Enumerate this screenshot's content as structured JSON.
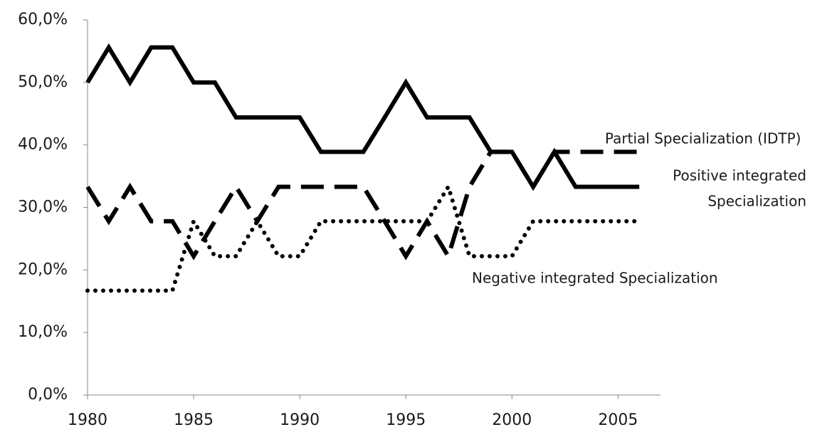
{
  "chart_data": {
    "type": "line",
    "x": [
      1980,
      1981,
      1982,
      1983,
      1984,
      1985,
      1986,
      1987,
      1988,
      1989,
      1990,
      1991,
      1992,
      1993,
      1994,
      1995,
      1996,
      1997,
      1998,
      1999,
      2000,
      2001,
      2002,
      2003,
      2004,
      2005,
      2006
    ],
    "series": [
      {
        "name": "Positive integrated Specialization",
        "color": "#000000",
        "style": "solid",
        "values": [
          50,
          55.6,
          50,
          55.6,
          55.6,
          50,
          50,
          44.4,
          44.4,
          44.4,
          44.4,
          38.9,
          38.9,
          38.9,
          44.4,
          50,
          44.4,
          44.4,
          44.4,
          38.9,
          38.9,
          33.3,
          38.9,
          33.3,
          33.3,
          33.3,
          33.3
        ]
      },
      {
        "name": "Partial Specialization (IDTP)",
        "color": "#000000",
        "style": "dashed",
        "values": [
          33.3,
          27.8,
          33.3,
          27.8,
          27.8,
          22.2,
          27.8,
          33.3,
          27.8,
          33.3,
          33.3,
          33.3,
          33.3,
          33.3,
          27.8,
          22.2,
          27.8,
          22.2,
          33.3,
          38.9,
          38.9,
          33.3,
          38.9,
          38.9,
          38.9,
          38.9,
          38.9
        ]
      },
      {
        "name": "Negative integrated Specialization",
        "color": "#000000",
        "style": "dotted",
        "values": [
          16.7,
          16.7,
          16.7,
          16.7,
          16.7,
          27.8,
          22.2,
          22.2,
          27.8,
          22.2,
          22.2,
          27.8,
          27.8,
          27.8,
          27.8,
          27.8,
          27.8,
          33.3,
          22.2,
          22.2,
          22.2,
          27.8,
          27.8,
          27.8,
          27.8,
          27.8,
          27.8
        ]
      }
    ],
    "annotations": [
      {
        "lines": [
          "Partial Specialization (IDTP)"
        ]
      },
      {
        "lines": [
          "Positive integrated",
          "Specialization"
        ]
      },
      {
        "lines": [
          "Negative integrated Specialization"
        ]
      }
    ],
    "xlim": [
      1980,
      2007
    ],
    "xticks": [
      1980,
      1985,
      1990,
      1995,
      2000,
      2005
    ],
    "ylim": [
      0,
      60
    ],
    "yticks": [
      {
        "value": 0,
        "label": "0,0%"
      },
      {
        "value": 10,
        "label": "10,0%"
      },
      {
        "value": 20,
        "label": "20,0%"
      },
      {
        "value": 30,
        "label": "30,0%"
      },
      {
        "value": 40,
        "label": "40,0%"
      },
      {
        "value": 50,
        "label": "50,0%"
      },
      {
        "value": 60,
        "label": "60,0%"
      }
    ],
    "grid": false
  }
}
